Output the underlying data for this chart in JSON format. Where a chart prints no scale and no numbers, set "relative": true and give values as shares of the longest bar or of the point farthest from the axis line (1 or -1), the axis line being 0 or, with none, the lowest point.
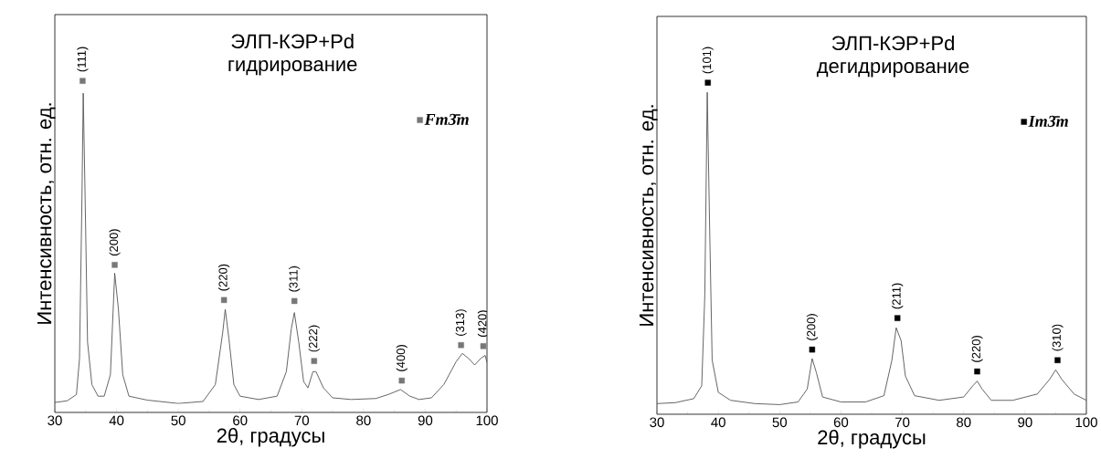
{
  "chart_data": [
    {
      "type": "line",
      "title": "ЭЛП-КЭР+Pd",
      "subtitle": "гидрирование",
      "xlabel": "2θ, градусы",
      "ylabel": "Интенсивность, отн. ед.",
      "relative": true,
      "xlim": [
        30,
        100
      ],
      "xticks": [
        30,
        40,
        50,
        60,
        70,
        80,
        90,
        100
      ],
      "legend": "top right",
      "series": [
        {
          "type": "line",
          "color": "#555555",
          "x": [
            30,
            32,
            33.5,
            34,
            34.4,
            34.6,
            34.9,
            35.3,
            36,
            37,
            38,
            39,
            39.7,
            40.3,
            41,
            42,
            45,
            50,
            54,
            56,
            57.2,
            57.6,
            58.2,
            59,
            60,
            63,
            66,
            67.5,
            68.3,
            68.8,
            69.5,
            70.3,
            71,
            71.8,
            72.3,
            73.5,
            75,
            78,
            82,
            84,
            86,
            87.5,
            89,
            91,
            93,
            95,
            96,
            97,
            98,
            99,
            99.7,
            100
          ],
          "values": [
            0.03,
            0.035,
            0.054,
            0.163,
            0.655,
            0.963,
            0.655,
            0.212,
            0.084,
            0.049,
            0.049,
            0.114,
            0.42,
            0.311,
            0.114,
            0.049,
            0.037,
            0.027,
            0.033,
            0.084,
            0.242,
            0.311,
            0.222,
            0.084,
            0.049,
            0.039,
            0.049,
            0.123,
            0.252,
            0.301,
            0.213,
            0.093,
            0.074,
            0.123,
            0.123,
            0.074,
            0.044,
            0.039,
            0.042,
            0.054,
            0.069,
            0.049,
            0.039,
            0.044,
            0.084,
            0.153,
            0.178,
            0.163,
            0.143,
            0.163,
            0.172,
            0.15
          ]
        },
        {
          "type": "scatter",
          "name": "Fm3̄m",
          "color": "#777777",
          "marker": "square",
          "x": [
            34.5,
            39.7,
            57.4,
            68.8,
            72.0,
            86.2,
            95.8,
            99.4
          ],
          "values": [
            1.0,
            0.445,
            0.339,
            0.336,
            0.155,
            0.096,
            0.203,
            0.2
          ]
        }
      ],
      "annotations": [
        {
          "text": "(111)",
          "x": 34.5,
          "y": 1.0
        },
        {
          "text": "(200)",
          "x": 39.7,
          "y": 0.445
        },
        {
          "text": "(220)",
          "x": 57.4,
          "y": 0.339
        },
        {
          "text": "(311)",
          "x": 68.8,
          "y": 0.336
        },
        {
          "text": "(222)",
          "x": 72.0,
          "y": 0.155
        },
        {
          "text": "(400)",
          "x": 86.2,
          "y": 0.096
        },
        {
          "text": "(313)",
          "x": 95.8,
          "y": 0.203
        },
        {
          "text": "(420)",
          "x": 99.4,
          "y": 0.2
        }
      ]
    },
    {
      "type": "line",
      "title": "ЭЛП-КЭР+Pd",
      "subtitle": "дегидрирование",
      "xlabel": "2θ, градусы",
      "ylabel": "Интенсивность, отн. ед.",
      "relative": true,
      "xlim": [
        30,
        100
      ],
      "xticks": [
        30,
        40,
        50,
        60,
        70,
        80,
        90,
        100
      ],
      "legend": "top right",
      "series": [
        {
          "type": "line",
          "color": "#555555",
          "x": [
            30,
            33,
            36,
            37.3,
            37.8,
            38.2,
            38.6,
            39,
            40,
            42,
            46,
            50,
            53,
            54.5,
            55.3,
            56,
            57,
            60,
            64,
            67,
            68.3,
            69,
            69.8,
            70.5,
            72,
            76,
            80,
            81.5,
            82.2,
            83,
            84.5,
            88,
            92,
            94,
            95,
            96,
            98,
            100
          ],
          "values": [
            0.032,
            0.035,
            0.047,
            0.086,
            0.358,
            0.971,
            0.553,
            0.163,
            0.066,
            0.042,
            0.032,
            0.029,
            0.037,
            0.076,
            0.168,
            0.125,
            0.052,
            0.037,
            0.037,
            0.056,
            0.163,
            0.261,
            0.222,
            0.115,
            0.056,
            0.042,
            0.052,
            0.086,
            0.1,
            0.076,
            0.042,
            0.042,
            0.061,
            0.105,
            0.134,
            0.105,
            0.061,
            0.042
          ]
        },
        {
          "type": "scatter",
          "name": "Im3̄m",
          "color": "#000000",
          "marker": "square",
          "x": [
            38.3,
            55.3,
            69.2,
            82.2,
            95.3
          ],
          "values": [
            1.0,
            0.195,
            0.29,
            0.129,
            0.163
          ]
        }
      ],
      "annotations": [
        {
          "text": "(101)",
          "x": 38.3,
          "y": 1.0
        },
        {
          "text": "(200)",
          "x": 55.3,
          "y": 0.195
        },
        {
          "text": "(211)",
          "x": 69.2,
          "y": 0.29
        },
        {
          "text": "(220)",
          "x": 82.2,
          "y": 0.129
        },
        {
          "text": "(310)",
          "x": 95.3,
          "y": 0.163
        }
      ]
    }
  ]
}
